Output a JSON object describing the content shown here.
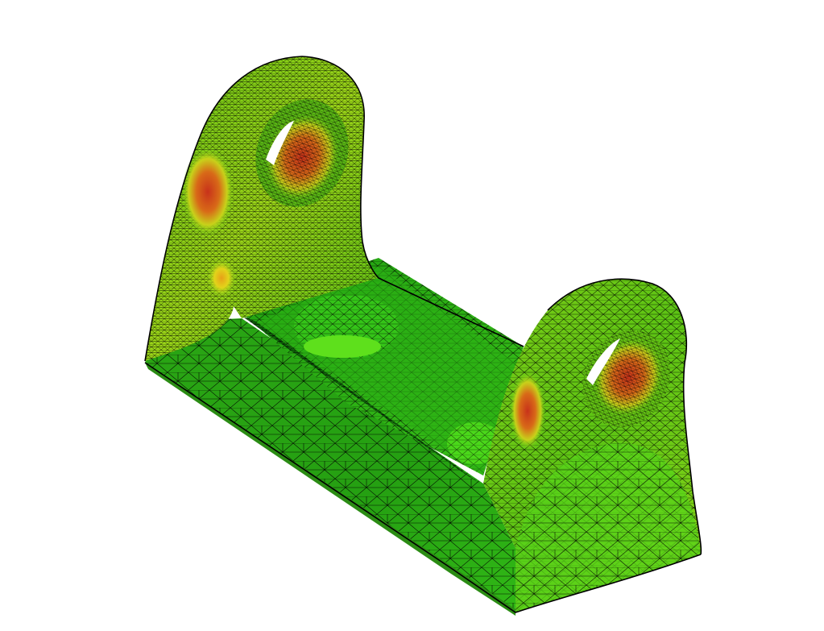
{
  "scene": {
    "background": "#ffffff",
    "colormap": {
      "low": "#1f9a12",
      "mid_low": "#3fcf12",
      "mid": "#c8e61a",
      "mid_high": "#f0c814",
      "high": "#c8321a",
      "edge": "#000000"
    },
    "parts": [
      {
        "name": "base-block",
        "icon": "mesh-base"
      },
      {
        "name": "left-lug",
        "icon": "mesh-lug"
      },
      {
        "name": "right-lug",
        "icon": "mesh-lug"
      },
      {
        "name": "center-channel",
        "icon": "mesh-channel"
      }
    ]
  }
}
